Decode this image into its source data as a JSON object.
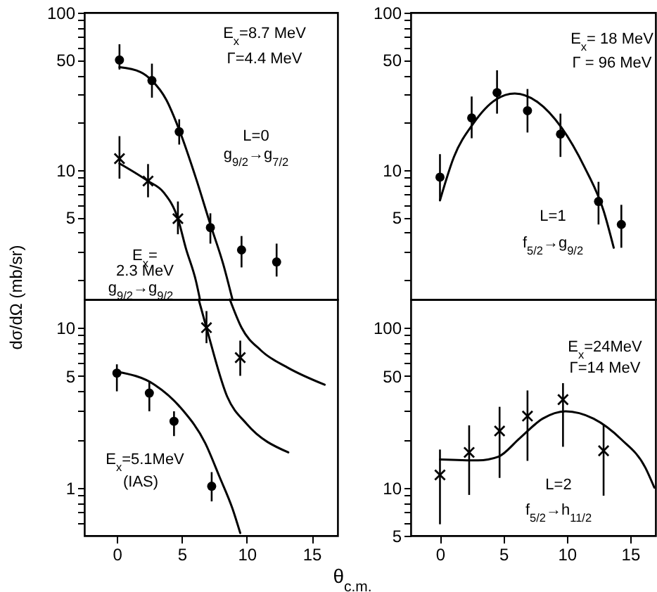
{
  "chart_data": [
    {
      "type": "scatter",
      "xlim": [
        -2.5,
        17
      ],
      "ylim": [
        1.5,
        100
      ],
      "log": true,
      "tick_labels": "y",
      "yticks": [
        {
          "value": 2,
          "label": null
        },
        {
          "value": 3,
          "label": null
        },
        {
          "value": 4,
          "label": null
        },
        5,
        {
          "value": 6,
          "label": null
        },
        {
          "value": 7,
          "label": null
        },
        {
          "value": 8,
          "label": null
        },
        {
          "value": 9,
          "label": null
        },
        10,
        {
          "value": 20,
          "label": null
        },
        {
          "value": 30,
          "label": null
        },
        {
          "value": 40,
          "label": null
        },
        50,
        {
          "value": 60,
          "label": null
        },
        {
          "value": 70,
          "label": null
        },
        {
          "value": 80,
          "label": null
        },
        {
          "value": 90,
          "label": null
        },
        100
      ],
      "series": [
        {
          "marker": "circle",
          "color": "#000000",
          "x": [
            0.2,
            2.7,
            4.8,
            7.2,
            9.6,
            12.3
          ],
          "values": [
            50,
            37,
            17.5,
            4.3,
            3.1,
            2.6
          ],
          "errors": [
            [
              43.5,
              63
            ],
            [
              28.8,
              47.4
            ],
            [
              14.5,
              21
            ],
            [
              3.4,
              5.3
            ],
            [
              2.4,
              3.8
            ],
            [
              2.1,
              3.4
            ]
          ]
        },
        {
          "marker": "cross",
          "color": "#000000",
          "x": [
            0.2,
            2.4,
            4.7
          ],
          "values": [
            11.8,
            8.5,
            4.9
          ],
          "errors": [
            [
              8.8,
              16.4
            ],
            [
              6.7,
              10.9
            ],
            [
              3.9,
              6.3
            ]
          ]
        },
        {
          "type": "line",
          "marker": "none",
          "color": "#000000",
          "x": [
            0.2,
            1.8,
            2.7,
            3.8,
            4.8,
            6.1,
            7.2,
            8.2,
            8.9
          ],
          "values": [
            45,
            42,
            37,
            28,
            18,
            8.8,
            4.5,
            2.5,
            1.5
          ]
        },
        {
          "type": "line",
          "marker": "none",
          "color": "#000000",
          "x": [
            0.2,
            2.4,
            3.6,
            4.7,
            5.3,
            6.1,
            6.4
          ],
          "values": [
            11,
            8.5,
            7.2,
            4.9,
            3.2,
            1.95,
            1.5
          ]
        }
      ],
      "annotations": [
        "E$_{x}$=8.7 MeV",
        "Γ=4.4 MeV",
        "L=0",
        "g$_{9/2}$→g$_{7/2}$",
        "E$_{x}$=",
        "2.3 MeV",
        "g$_{9/2}$→g$_{9/2}$"
      ]
    },
    {
      "type": "scatter",
      "xlim": [
        -2.3,
        17
      ],
      "ylim": [
        1.5,
        100
      ],
      "log": true,
      "tick_labels": "y",
      "yticks": [
        {
          "value": 2,
          "label": null
        },
        {
          "value": 3,
          "label": null
        },
        {
          "value": 4,
          "label": null
        },
        5,
        {
          "value": 6,
          "label": null
        },
        {
          "value": 7,
          "label": null
        },
        {
          "value": 8,
          "label": null
        },
        {
          "value": 9,
          "label": null
        },
        10,
        {
          "value": 20,
          "label": null
        },
        {
          "value": 30,
          "label": null
        },
        {
          "value": 40,
          "label": null
        },
        50,
        {
          "value": 60,
          "label": null
        },
        {
          "value": 70,
          "label": null
        },
        {
          "value": 80,
          "label": null
        },
        {
          "value": 90,
          "label": null
        },
        100
      ],
      "series": [
        {
          "marker": "circle",
          "color": "#000000",
          "x": [
            0,
            2.5,
            4.5,
            6.9,
            9.5,
            12.5,
            14.3
          ],
          "values": [
            9,
            21.4,
            31,
            23.8,
            16.9,
            6.3,
            4.5
          ],
          "errors": [
            [
              6.4,
              12.6
            ],
            [
              15.9,
              29.3
            ],
            [
              22.8,
              43
            ],
            [
              17.3,
              32.7
            ],
            [
              12.1,
              22.8
            ],
            [
              4.5,
              8.4
            ],
            [
              3.2,
              6
            ]
          ]
        },
        {
          "type": "line",
          "marker": "none",
          "color": "#000000",
          "x": [
            0,
            1.1,
            2.6,
            4.4,
            5.9,
            7.7,
            9.6,
            11.4,
            12.9,
            13.7
          ],
          "values": [
            6.4,
            12.1,
            19.6,
            28,
            30.6,
            27,
            18.5,
            10.4,
            5.5,
            3.2
          ]
        }
      ],
      "annotations": [
        "E$_{x}$= 18 MeV",
        "Γ = 96 MeV",
        "L=1",
        "f$_{5/2}$→g$_{9/2}$"
      ]
    },
    {
      "type": "scatter",
      "xlim": [
        -2.5,
        17
      ],
      "ylim": [
        0.5,
        15
      ],
      "log": true,
      "ylabel": "dσ/dΩ (mb/sr)",
      "xticks": [
        0,
        5,
        10,
        15
      ],
      "yticks": [
        {
          "value": 0.6,
          "label": null
        },
        {
          "value": 0.7,
          "label": null
        },
        {
          "value": 0.8,
          "label": null
        },
        {
          "value": 0.9,
          "label": null
        },
        1,
        {
          "value": 2,
          "label": null
        },
        {
          "value": 3,
          "label": null
        },
        {
          "value": 4,
          "label": null
        },
        5,
        {
          "value": 6,
          "label": null
        },
        {
          "value": 7,
          "label": null
        },
        {
          "value": 8,
          "label": null
        },
        {
          "value": 9,
          "label": null
        },
        10
      ],
      "series": [
        {
          "marker": "cross",
          "color": "#000000",
          "x": [
            6.9,
            9.5
          ],
          "values": [
            10,
            6.5
          ],
          "errors": [
            [
              8,
              12.7
            ],
            [
              5,
              8.3
            ]
          ]
        },
        {
          "marker": "circle",
          "color": "#000000",
          "x": [
            0,
            2.5,
            4.4,
            7.3
          ],
          "values": [
            5.2,
            3.9,
            2.6,
            1.02
          ],
          "errors": [
            [
              4,
              5.9
            ],
            [
              3,
              4.6
            ],
            [
              2.1,
              3
            ],
            [
              0.82,
              1.25
            ]
          ]
        },
        {
          "type": "line",
          "marker": "none",
          "color": "#000000",
          "x": [
            6.3,
            6.9,
            8.5,
            10,
            13.2
          ],
          "values": [
            15,
            10,
            3.7,
            2.5,
            1.66
          ]
        },
        {
          "type": "line",
          "marker": "none",
          "color": "#000000",
          "x": [
            8.7,
            9.6,
            11.1,
            13.2,
            16
          ],
          "values": [
            15,
            10,
            7.2,
            5.6,
            4.4
          ]
        },
        {
          "type": "line",
          "marker": "none",
          "color": "#000000",
          "x": [
            0,
            2.9,
            5,
            6.8,
            7.9,
            8.9,
            9.5
          ],
          "values": [
            5.3,
            4.4,
            3.1,
            1.9,
            1.17,
            0.74,
            0.52
          ]
        }
      ],
      "annotations": [
        "E$_{x}$=5.1MeV",
        "(IAS)"
      ]
    },
    {
      "type": "scatter",
      "xlim": [
        -2.3,
        17
      ],
      "ylim": [
        5,
        150
      ],
      "log": true,
      "xlabel": "θ$_{c.m.}$",
      "xticks": [
        0,
        5,
        10,
        15
      ],
      "yticks": [
        5,
        {
          "value": 6,
          "label": null
        },
        {
          "value": 7,
          "label": null
        },
        {
          "value": 8,
          "label": null
        },
        {
          "value": 9,
          "label": null
        },
        10,
        {
          "value": 20,
          "label": null
        },
        {
          "value": 30,
          "label": null
        },
        {
          "value": 40,
          "label": null
        },
        50,
        {
          "value": 60,
          "label": null
        },
        {
          "value": 70,
          "label": null
        },
        {
          "value": 80,
          "label": null
        },
        {
          "value": 90,
          "label": null
        },
        100
      ],
      "series": [
        {
          "marker": "cross",
          "color": "#000000",
          "x": [
            0,
            2.3,
            4.7,
            6.9,
            9.7,
            12.9
          ],
          "values": [
            12,
            16.6,
            22.6,
            28,
            35.5,
            17
          ],
          "errors": [
            [
              5.9,
              17.3
            ],
            [
              9,
              24.5
            ],
            [
              11.5,
              32
            ],
            [
              14.7,
              40.5
            ],
            [
              18,
              45
            ],
            [
              8.9,
              24.5
            ]
          ]
        },
        {
          "type": "line",
          "marker": "none",
          "color": "#000000",
          "x": [
            0,
            3,
            4.6,
            6.3,
            8.1,
            9.9,
            12.1,
            14.3,
            16.2,
            16.9
          ],
          "values": [
            15,
            14.8,
            15.6,
            20.4,
            27,
            30,
            27,
            20,
            13.3,
            10
          ]
        }
      ],
      "annotations": [
        "E$_{x}$=24MeV",
        "Γ=14 MeV",
        "L=2",
        "f$_{5/2}$→h$_{11/2}$"
      ]
    }
  ]
}
